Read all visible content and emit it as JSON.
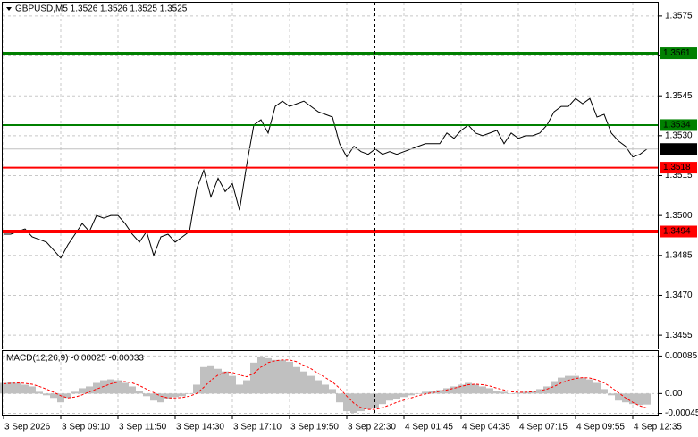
{
  "chart_data": [
    {
      "type": "line",
      "title": "GBPUSD,M5  1.3526 1.3526 1.3525 1.3525",
      "grid": true,
      "ylim": [
        1.345,
        1.358
      ],
      "yticks": [
        1.3575,
        {
          "value": 1.356,
          "label": "1.3560"
        },
        1.3545,
        {
          "value": 1.353,
          "label": "1.3530"
        },
        1.3515,
        {
          "value": 1.35,
          "label": "1.3500"
        },
        1.3485,
        {
          "value": 1.347,
          "label": "1.3470"
        },
        1.3455
      ],
      "series": [
        {
          "color": "#000000",
          "values": [
            1.3493,
            1.3493,
            1.3494,
            1.3495,
            1.3492,
            1.3491,
            1.349,
            1.3487,
            1.3484,
            1.3489,
            1.3493,
            1.3497,
            1.3494,
            1.35,
            1.3499,
            1.35,
            1.35,
            1.3497,
            1.3493,
            1.349,
            1.3494,
            1.3485,
            1.3492,
            1.3493,
            1.349,
            1.3492,
            1.3494,
            1.351,
            1.3517,
            1.3507,
            1.3514,
            1.3509,
            1.3512,
            1.3502,
            1.3519,
            1.3534,
            1.3536,
            1.3531,
            1.3541,
            1.3543,
            1.3541,
            1.3542,
            1.3543,
            1.3541,
            1.3539,
            1.3538,
            1.3537,
            1.3527,
            1.3522,
            1.3526,
            1.3524,
            1.3523,
            1.3525,
            1.3523,
            1.3524,
            1.3523,
            1.3524,
            1.3525,
            1.3526,
            1.3527,
            1.3527,
            1.3527,
            1.3531,
            1.3529,
            1.3532,
            1.3534,
            1.3531,
            1.353,
            1.3531,
            1.3532,
            1.3527,
            1.3531,
            1.3529,
            1.353,
            1.353,
            1.3531,
            1.3534,
            1.3539,
            1.3541,
            1.3541,
            1.3544,
            1.3542,
            1.3544,
            1.3537,
            1.3538,
            1.3531,
            1.3528,
            1.3526,
            1.3522,
            1.3523,
            1.3525
          ]
        }
      ],
      "levels": [
        {
          "value": 1.3561,
          "color": "#008000",
          "line_width": 3
        },
        {
          "value": 1.3534,
          "color": "#008000",
          "line_width": 2
        },
        {
          "value": 1.3518,
          "color": "#ff0000",
          "line_width": 2
        },
        {
          "value": 1.3494,
          "color": "#ff0000",
          "line_width": 4
        }
      ],
      "last_price": 1.3525
    },
    {
      "type": "bar",
      "title": "MACD(12,26,9) -0.00025 -0.00033",
      "grid": true,
      "ylim": [
        -0.0005,
        0.00096
      ],
      "yticks": [
        0.00085,
        {
          "value": 0,
          "label": "0.00"
        },
        -0.00045
      ],
      "categories": [
        "3 Sep 2026",
        null,
        null,
        null,
        null,
        null,
        null,
        null,
        "3 Sep 09:10",
        null,
        null,
        null,
        null,
        null,
        null,
        null,
        "3 Sep 11:50",
        null,
        null,
        null,
        null,
        null,
        null,
        null,
        "3 Sep 14:30",
        null,
        null,
        null,
        null,
        null,
        null,
        null,
        "3 Sep 17:10",
        null,
        null,
        null,
        null,
        null,
        null,
        null,
        "3 Sep 19:50",
        null,
        null,
        null,
        null,
        null,
        null,
        null,
        "3 Sep 22:30",
        null,
        null,
        null,
        null,
        null,
        null,
        null,
        "4 Sep 01:45",
        null,
        null,
        null,
        null,
        null,
        null,
        null,
        "4 Sep 04:35",
        null,
        null,
        null,
        null,
        null,
        null,
        null,
        "4 Sep 07:15",
        null,
        null,
        null,
        null,
        null,
        null,
        null,
        "4 Sep 09:55",
        null,
        null,
        null,
        null,
        null,
        null,
        null,
        "4 Sep 12:35",
        null,
        null
      ],
      "series": [
        {
          "color": "#c0c0c0",
          "values": [
            0.00024,
            0.00026,
            0.00024,
            0.0002,
            0.00016,
            4e-05,
            -4e-05,
            -0.0001,
            -0.0002,
            -0.0001,
            4e-05,
            0.00012,
            0.00016,
            0.00024,
            0.0003,
            0.00032,
            0.0003,
            0.00024,
            0.00016,
            6e-05,
            -6e-05,
            -0.00016,
            -0.0002,
            -0.00012,
            -8e-05,
            -6e-05,
            0,
            0.0002,
            0.0006,
            0.00064,
            0.00056,
            0.0005,
            0.0004,
            0.0002,
            0.0003,
            0.0007,
            0.00084,
            0.0008,
            0.00076,
            0.00076,
            0.00072,
            0.0006,
            0.0005,
            0.0004,
            0.0003,
            0.0002,
            0.0001,
            -0.0002,
            -0.0004,
            -0.00044,
            -0.0004,
            -0.00036,
            -0.00032,
            -0.00024,
            -0.00016,
            -0.00012,
            -8e-05,
            -4e-05,
            0,
            4e-05,
            6e-05,
            8e-05,
            0.00012,
            0.00016,
            0.0002,
            0.00024,
            0.0002,
            0.00016,
            0.00012,
            6e-05,
            4e-05,
            0,
            2e-05,
            4e-05,
            6e-05,
            0.0001,
            0.00016,
            0.00028,
            0.00036,
            0.0004,
            0.0004,
            0.00036,
            0.00032,
            0.00024,
            0.0001,
            -4e-05,
            -0.00016,
            -0.0002,
            -0.00024,
            -0.00026,
            -0.00025
          ]
        },
        {
          "color": "#ff0000",
          "values": [
            0.00022,
            0.00023,
            0.00024,
            0.00023,
            0.00021,
            0.00016,
            0.0001,
            3e-05,
            -5e-05,
            -0.0001,
            -8e-05,
            -3e-05,
            4e-05,
            0.0001,
            0.00016,
            0.00022,
            0.00026,
            0.00027,
            0.00024,
            0.00018,
            0.0001,
            2e-05,
            -6e-05,
            -0.0001,
            -0.0001,
            -9e-05,
            -6e-05,
            0,
            0.00014,
            0.0003,
            0.00042,
            0.00048,
            0.00048,
            0.00042,
            0.00038,
            0.00046,
            0.0006,
            0.0007,
            0.00074,
            0.00076,
            0.00076,
            0.00072,
            0.00064,
            0.00056,
            0.00046,
            0.00036,
            0.00026,
            0.00012,
            -6e-05,
            -0.00022,
            -0.00032,
            -0.00036,
            -0.00036,
            -0.00032,
            -0.00026,
            -0.0002,
            -0.00015,
            -0.0001,
            -5e-05,
            -1e-05,
            2e-05,
            5e-05,
            8e-05,
            0.00012,
            0.00016,
            0.0002,
            0.00021,
            0.0002,
            0.00017,
            0.00012,
            8e-05,
            4e-05,
            3e-05,
            3e-05,
            4e-05,
            6e-05,
            0.0001,
            0.00016,
            0.00024,
            0.0003,
            0.00034,
            0.00036,
            0.00035,
            0.00031,
            0.00024,
            0.00014,
            2e-05,
            -0.0001,
            -0.0002,
            -0.00028,
            -0.00033
          ]
        }
      ]
    }
  ]
}
